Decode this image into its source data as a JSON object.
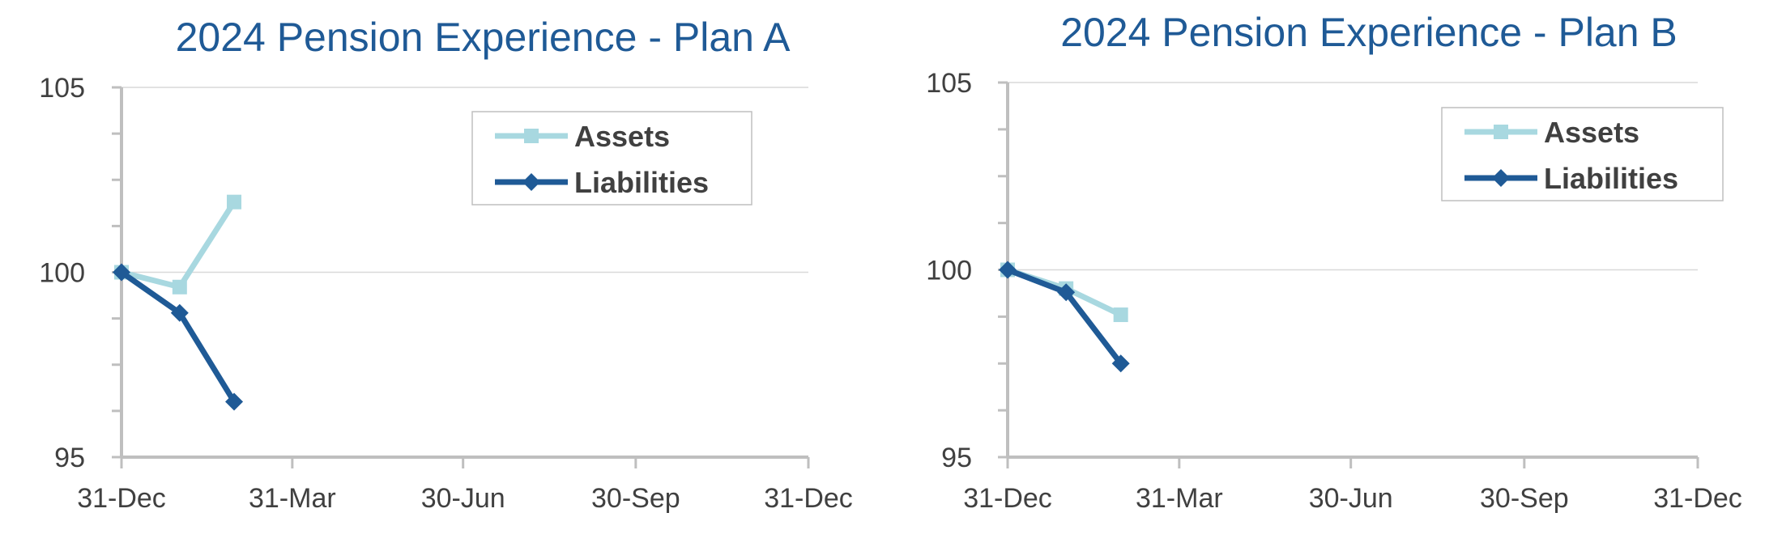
{
  "colors": {
    "assets": "#a8d8e0",
    "liabilities": "#1f5a96",
    "title": "#1f5a96",
    "axis": "#bfbfbf",
    "grid": "#d9d9d9",
    "text": "#404040"
  },
  "chart_data": [
    {
      "type": "line",
      "title": "2024 Pension Experience - Plan A",
      "xlabel": "",
      "ylabel": "",
      "x_ticks": [
        "31-Dec",
        "31-Mar",
        "30-Jun",
        "30-Sep",
        "31-Dec"
      ],
      "y_ticks": [
        "95",
        "100",
        "105"
      ],
      "ylim": [
        95,
        105
      ],
      "grid": "horizontal",
      "legend_position": "top-right",
      "x": [
        "31-Dec",
        "31-Jan",
        "29-Feb"
      ],
      "series": [
        {
          "name": "Assets",
          "marker": "square",
          "values": [
            100.0,
            99.6,
            101.9
          ]
        },
        {
          "name": "Liabilities",
          "marker": "diamond",
          "values": [
            100.0,
            98.9,
            96.5
          ]
        }
      ]
    },
    {
      "type": "line",
      "title": "2024 Pension Experience - Plan B",
      "xlabel": "",
      "ylabel": "",
      "x_ticks": [
        "31-Dec",
        "31-Mar",
        "30-Jun",
        "30-Sep",
        "31-Dec"
      ],
      "y_ticks": [
        "95",
        "100",
        "105"
      ],
      "ylim": [
        95,
        105
      ],
      "grid": "horizontal",
      "legend_position": "top-right",
      "x": [
        "31-Dec",
        "31-Jan",
        "29-Feb"
      ],
      "series": [
        {
          "name": "Assets",
          "marker": "square",
          "values": [
            100.0,
            99.5,
            98.8
          ]
        },
        {
          "name": "Liabilities",
          "marker": "diamond",
          "values": [
            100.0,
            99.4,
            97.5
          ]
        }
      ]
    }
  ]
}
